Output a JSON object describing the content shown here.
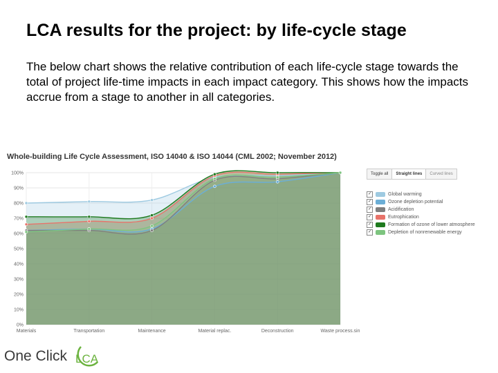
{
  "slide": {
    "title": "LCA results for the project: by life-cycle stage",
    "body": "The below chart shows the relative contribution of each life-cycle stage towards the total of project life-time impacts in each impact category. This shows how the impacts accrue from a stage to another in all categories."
  },
  "controls": {
    "toggle_all": "Toggle all",
    "straight_lines": "Straight lines",
    "curved_lines": "Curved lines"
  },
  "logo": {
    "text": "One Click",
    "mark": "LCA",
    "color": "#6cb33f"
  },
  "chart_data": {
    "type": "area",
    "title": "Whole-building Life Cycle Assessment, ISO 14040 & ISO 14044 (CML 2002; November 2012)",
    "categories": [
      "Materials",
      "Transportation",
      "Maintenance",
      "Material replac.",
      "Deconstruction",
      "Waste process.sin"
    ],
    "yticks": [
      "0%",
      "10%",
      "20%",
      "30%",
      "40%",
      "50%",
      "60%",
      "70%",
      "80%",
      "90%",
      "100%"
    ],
    "ylim": [
      0,
      100
    ],
    "legend_position": "right",
    "series": [
      {
        "name": "Global warming",
        "color": "#9ecae1",
        "values": [
          80,
          81,
          82,
          97,
          98,
          100
        ]
      },
      {
        "name": "Ozone depletion potential",
        "color": "#6baed6",
        "values": [
          62,
          63,
          63,
          91,
          94,
          100
        ]
      },
      {
        "name": "Acidification",
        "color": "#7f7f7f",
        "values": [
          62,
          62,
          62,
          95,
          96,
          100
        ]
      },
      {
        "name": "Eutrophication",
        "color": "#e8736a",
        "values": [
          66,
          68,
          70,
          98,
          99,
          100
        ]
      },
      {
        "name": "Formation of ozone of lower atmosphere",
        "color": "#1e7a1e",
        "values": [
          71,
          71,
          72,
          99,
          100,
          100
        ]
      },
      {
        "name": "Depletion of nonrenewable energy",
        "color": "#7dc47f",
        "values": [
          61,
          63,
          65,
          96,
          97,
          100
        ]
      }
    ]
  }
}
